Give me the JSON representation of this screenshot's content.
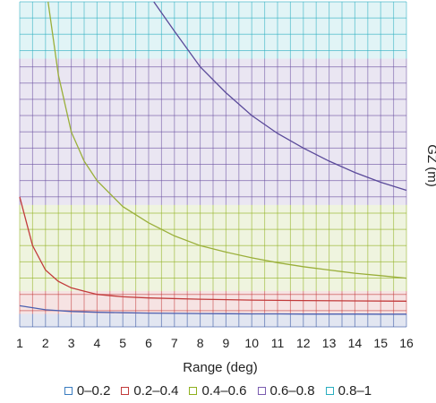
{
  "chart_data": {
    "type": "line",
    "title": "",
    "xlabel": "Range (deg)",
    "ylabel": "GZ (m)",
    "xlim": [
      1,
      16
    ],
    "ylim": [
      0,
      20
    ],
    "x_ticks": [
      1,
      2,
      3,
      4,
      5,
      6,
      7,
      8,
      9,
      10,
      11,
      12,
      13,
      14,
      15,
      16
    ],
    "y_ticks": [],
    "grid": true,
    "legend_position": "bottom",
    "bands": [
      {
        "name": "0–0.2",
        "color": "#2f4f9e",
        "y_from": 0,
        "y_to": 0.8
      },
      {
        "name": "0.2–0.4",
        "color": "#c23b3b",
        "y_from": 0.8,
        "y_to": 2.2
      },
      {
        "name": "0.4–0.6",
        "color": "#8fb01e",
        "y_from": 2.2,
        "y_to": 7.5
      },
      {
        "name": "0.6–0.8",
        "color": "#6a4fa0",
        "y_from": 7.5,
        "y_to": 16.5
      },
      {
        "name": "0.8–1",
        "color": "#2aaec0",
        "y_from": 16.5,
        "y_to": 20
      }
    ],
    "series": [
      {
        "color": "#4a5fb0",
        "x": [
          1,
          2,
          3,
          4,
          5,
          6,
          7,
          8,
          9,
          10,
          11,
          12,
          13,
          14,
          15,
          16
        ],
        "y": [
          1.3,
          1.05,
          0.95,
          0.9,
          0.87,
          0.85,
          0.83,
          0.82,
          0.81,
          0.8,
          0.8,
          0.79,
          0.79,
          0.79,
          0.78,
          0.78
        ]
      },
      {
        "color": "#c23b3b",
        "x": [
          1,
          1.5,
          2,
          2.5,
          3,
          3.5,
          4,
          5,
          6,
          8,
          10,
          12,
          14,
          16
        ],
        "y": [
          8.0,
          5.0,
          3.5,
          2.8,
          2.4,
          2.2,
          2.0,
          1.85,
          1.78,
          1.7,
          1.65,
          1.62,
          1.6,
          1.58
        ]
      },
      {
        "color": "#9aaf3a",
        "x": [
          2.1,
          2.5,
          3,
          3.5,
          4,
          5,
          6,
          7,
          8,
          9,
          10,
          11,
          12,
          13,
          14,
          15,
          16
        ],
        "y": [
          20,
          15.5,
          12.0,
          10.2,
          9.0,
          7.4,
          6.4,
          5.6,
          5.0,
          4.6,
          4.25,
          3.95,
          3.7,
          3.5,
          3.3,
          3.15,
          3.0
        ]
      },
      {
        "color": "#5a4a9a",
        "x": [
          6.2,
          7,
          8,
          9,
          10,
          11,
          12,
          13,
          14,
          15,
          16
        ],
        "y": [
          20,
          18.2,
          16.0,
          14.4,
          13.0,
          11.9,
          11.0,
          10.2,
          9.5,
          8.9,
          8.4
        ]
      }
    ]
  },
  "legend": {
    "items": [
      {
        "label": "0–0.2",
        "color": "#3a7cc0"
      },
      {
        "label": "0.2–0.4",
        "color": "#c23b3b"
      },
      {
        "label": "0.4–0.6",
        "color": "#8fb01e"
      },
      {
        "label": "0.6–0.8",
        "color": "#7a5cb0"
      },
      {
        "label": "0.8–1",
        "color": "#2aaec0"
      }
    ]
  }
}
